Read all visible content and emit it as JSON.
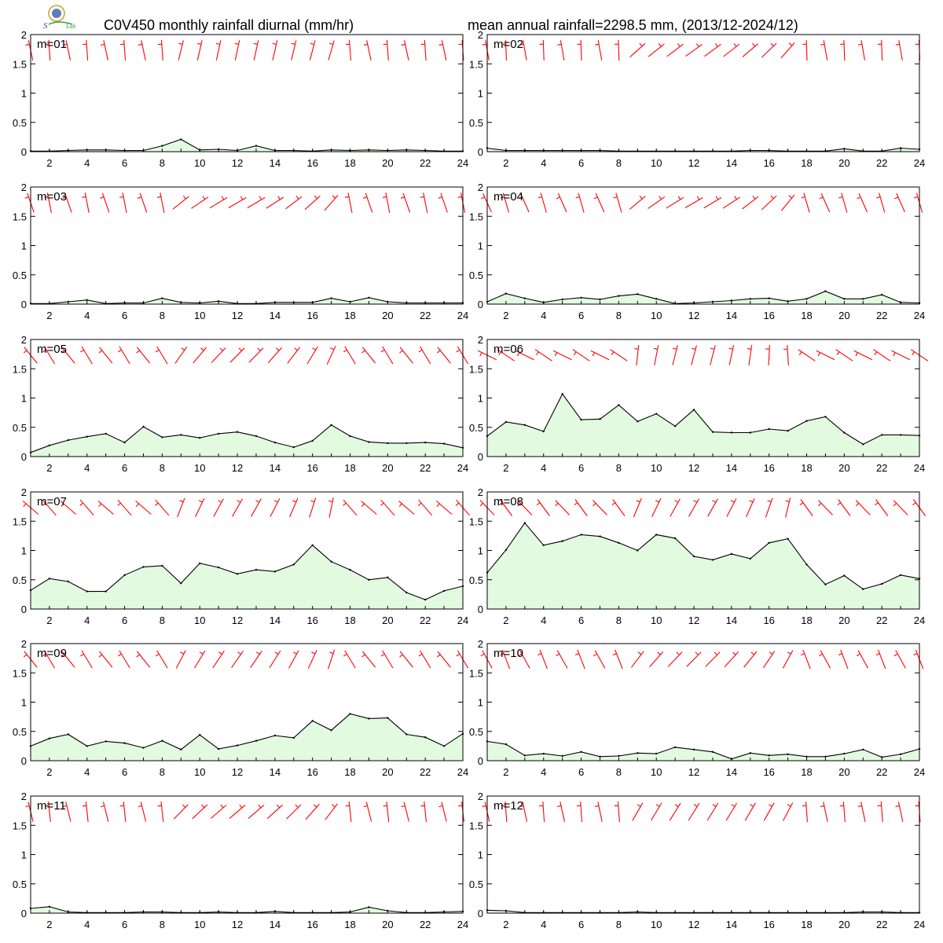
{
  "title_left": "C0V450 monthly rainfall diurnal (mm/hr)",
  "title_right": "mean annual rainfall=2298.5 mm, (2013/12-2024/12)",
  "colors": {
    "line": "#000000",
    "fill": "#e2fbe0",
    "wind": "#ff0000",
    "frame": "#000000"
  },
  "logo_icon": "station-seal-logo-icon",
  "chart_data": [
    {
      "type": "area",
      "label": "m=01",
      "x": [
        1,
        2,
        3,
        4,
        5,
        6,
        7,
        8,
        9,
        10,
        11,
        12,
        13,
        14,
        15,
        16,
        17,
        18,
        19,
        20,
        21,
        22,
        23,
        24
      ],
      "y": [
        0.01,
        0.01,
        0.02,
        0.03,
        0.03,
        0.02,
        0.02,
        0.1,
        0.21,
        0.03,
        0.04,
        0.02,
        0.1,
        0.02,
        0.02,
        0.01,
        0.03,
        0.02,
        0.03,
        0.02,
        0.03,
        0.02,
        0.01,
        0.01
      ],
      "ylim": [
        0,
        2
      ],
      "xlim": [
        1,
        24
      ],
      "yticks": [
        0,
        0.5,
        1,
        1.5,
        2
      ],
      "xticks": [
        2,
        4,
        6,
        8,
        10,
        12,
        14,
        16,
        18,
        20,
        22,
        24
      ]
    },
    {
      "type": "area",
      "label": "m=02",
      "x": [
        1,
        2,
        3,
        4,
        5,
        6,
        7,
        8,
        9,
        10,
        11,
        12,
        13,
        14,
        15,
        16,
        17,
        18,
        19,
        20,
        21,
        22,
        23,
        24
      ],
      "y": [
        0.06,
        0.02,
        0.02,
        0.02,
        0.02,
        0.02,
        0.02,
        0.01,
        0.01,
        0.01,
        0.01,
        0.01,
        0.01,
        0.01,
        0.02,
        0.02,
        0.01,
        0.01,
        0.01,
        0.05,
        0.01,
        0.01,
        0.06,
        0.04
      ],
      "ylim": [
        0,
        2
      ],
      "xlim": [
        1,
        24
      ],
      "yticks": [
        0,
        0.5,
        1,
        1.5,
        2
      ],
      "xticks": [
        2,
        4,
        6,
        8,
        10,
        12,
        14,
        16,
        18,
        20,
        22,
        24
      ]
    },
    {
      "type": "area",
      "label": "m=03",
      "x": [
        1,
        2,
        3,
        4,
        5,
        6,
        7,
        8,
        9,
        10,
        11,
        12,
        13,
        14,
        15,
        16,
        17,
        18,
        19,
        20,
        21,
        22,
        23,
        24
      ],
      "y": [
        0.01,
        0.01,
        0.04,
        0.07,
        0.01,
        0.02,
        0.02,
        0.1,
        0.03,
        0.02,
        0.05,
        0.01,
        0.01,
        0.03,
        0.03,
        0.03,
        0.1,
        0.04,
        0.11,
        0.04,
        0.02,
        0.02,
        0.02,
        0.02
      ],
      "ylim": [
        0,
        2
      ],
      "xlim": [
        1,
        24
      ],
      "yticks": [
        0,
        0.5,
        1,
        1.5,
        2
      ],
      "xticks": [
        2,
        4,
        6,
        8,
        10,
        12,
        14,
        16,
        18,
        20,
        22,
        24
      ]
    },
    {
      "type": "area",
      "label": "m=04",
      "x": [
        1,
        2,
        3,
        4,
        5,
        6,
        7,
        8,
        9,
        10,
        11,
        12,
        13,
        14,
        15,
        16,
        17,
        18,
        19,
        20,
        21,
        22,
        23,
        24
      ],
      "y": [
        0.04,
        0.18,
        0.1,
        0.03,
        0.08,
        0.11,
        0.08,
        0.14,
        0.17,
        0.09,
        0.01,
        0.02,
        0.04,
        0.06,
        0.09,
        0.1,
        0.05,
        0.09,
        0.22,
        0.09,
        0.09,
        0.16,
        0.03,
        0.02
      ],
      "ylim": [
        0,
        2
      ],
      "xlim": [
        1,
        24
      ],
      "yticks": [
        0,
        0.5,
        1,
        1.5,
        2
      ],
      "xticks": [
        2,
        4,
        6,
        8,
        10,
        12,
        14,
        16,
        18,
        20,
        22,
        24
      ]
    },
    {
      "type": "area",
      "label": "m=05",
      "x": [
        1,
        2,
        3,
        4,
        5,
        6,
        7,
        8,
        9,
        10,
        11,
        12,
        13,
        14,
        15,
        16,
        17,
        18,
        19,
        20,
        21,
        22,
        23,
        24
      ],
      "y": [
        0.07,
        0.19,
        0.28,
        0.34,
        0.39,
        0.24,
        0.51,
        0.33,
        0.37,
        0.32,
        0.39,
        0.42,
        0.35,
        0.24,
        0.16,
        0.27,
        0.54,
        0.35,
        0.25,
        0.23,
        0.23,
        0.24,
        0.22,
        0.15
      ],
      "ylim": [
        0,
        2
      ],
      "xlim": [
        1,
        24
      ],
      "yticks": [
        0,
        0.5,
        1,
        1.5,
        2
      ],
      "xticks": [
        2,
        4,
        6,
        8,
        10,
        12,
        14,
        16,
        18,
        20,
        22,
        24
      ]
    },
    {
      "type": "area",
      "label": "m=06",
      "x": [
        1,
        2,
        3,
        4,
        5,
        6,
        7,
        8,
        9,
        10,
        11,
        12,
        13,
        14,
        15,
        16,
        17,
        18,
        19,
        20,
        21,
        22,
        23,
        24
      ],
      "y": [
        0.35,
        0.59,
        0.54,
        0.43,
        1.07,
        0.63,
        0.64,
        0.88,
        0.6,
        0.73,
        0.52,
        0.8,
        0.42,
        0.41,
        0.41,
        0.47,
        0.44,
        0.61,
        0.68,
        0.41,
        0.21,
        0.37,
        0.37,
        0.36
      ],
      "ylim": [
        0,
        2
      ],
      "xlim": [
        1,
        24
      ],
      "yticks": [
        0,
        0.5,
        1,
        1.5,
        2
      ],
      "xticks": [
        2,
        4,
        6,
        8,
        10,
        12,
        14,
        16,
        18,
        20,
        22,
        24
      ]
    },
    {
      "type": "area",
      "label": "m=07",
      "x": [
        1,
        2,
        3,
        4,
        5,
        6,
        7,
        8,
        9,
        10,
        11,
        12,
        13,
        14,
        15,
        16,
        17,
        18,
        19,
        20,
        21,
        22,
        23,
        24
      ],
      "y": [
        0.32,
        0.52,
        0.47,
        0.3,
        0.3,
        0.58,
        0.72,
        0.74,
        0.44,
        0.78,
        0.71,
        0.6,
        0.67,
        0.64,
        0.76,
        1.09,
        0.81,
        0.67,
        0.5,
        0.54,
        0.28,
        0.16,
        0.31,
        0.39
      ],
      "ylim": [
        0,
        2
      ],
      "xlim": [
        1,
        24
      ],
      "yticks": [
        0,
        0.5,
        1,
        1.5,
        2
      ],
      "xticks": [
        2,
        4,
        6,
        8,
        10,
        12,
        14,
        16,
        18,
        20,
        22,
        24
      ]
    },
    {
      "type": "area",
      "label": "m=08",
      "x": [
        1,
        2,
        3,
        4,
        5,
        6,
        7,
        8,
        9,
        10,
        11,
        12,
        13,
        14,
        15,
        16,
        17,
        18,
        19,
        20,
        21,
        22,
        23,
        24
      ],
      "y": [
        0.62,
        1.01,
        1.47,
        1.09,
        1.16,
        1.27,
        1.24,
        1.13,
        1.0,
        1.27,
        1.21,
        0.9,
        0.84,
        0.94,
        0.86,
        1.13,
        1.2,
        0.76,
        0.42,
        0.57,
        0.34,
        0.43,
        0.58,
        0.52
      ],
      "ylim": [
        0,
        2
      ],
      "xlim": [
        1,
        24
      ],
      "yticks": [
        0,
        0.5,
        1,
        1.5,
        2
      ],
      "xticks": [
        2,
        4,
        6,
        8,
        10,
        12,
        14,
        16,
        18,
        20,
        22,
        24
      ]
    },
    {
      "type": "area",
      "label": "m=09",
      "x": [
        1,
        2,
        3,
        4,
        5,
        6,
        7,
        8,
        9,
        10,
        11,
        12,
        13,
        14,
        15,
        16,
        17,
        18,
        19,
        20,
        21,
        22,
        23,
        24
      ],
      "y": [
        0.25,
        0.38,
        0.45,
        0.25,
        0.33,
        0.3,
        0.22,
        0.34,
        0.19,
        0.44,
        0.2,
        0.26,
        0.34,
        0.43,
        0.39,
        0.68,
        0.52,
        0.8,
        0.72,
        0.73,
        0.45,
        0.4,
        0.25,
        0.46
      ],
      "ylim": [
        0,
        2
      ],
      "xlim": [
        1,
        24
      ],
      "yticks": [
        0,
        0.5,
        1,
        1.5,
        2
      ],
      "xticks": [
        2,
        4,
        6,
        8,
        10,
        12,
        14,
        16,
        18,
        20,
        22,
        24
      ]
    },
    {
      "type": "area",
      "label": "m=10",
      "x": [
        1,
        2,
        3,
        4,
        5,
        6,
        7,
        8,
        9,
        10,
        11,
        12,
        13,
        14,
        15,
        16,
        17,
        18,
        19,
        20,
        21,
        22,
        23,
        24
      ],
      "y": [
        0.33,
        0.28,
        0.09,
        0.12,
        0.08,
        0.15,
        0.07,
        0.08,
        0.13,
        0.12,
        0.23,
        0.19,
        0.15,
        0.03,
        0.13,
        0.09,
        0.11,
        0.07,
        0.07,
        0.12,
        0.19,
        0.06,
        0.11,
        0.2
      ],
      "ylim": [
        0,
        2
      ],
      "xlim": [
        1,
        24
      ],
      "yticks": [
        0,
        0.5,
        1,
        1.5,
        2
      ],
      "xticks": [
        2,
        4,
        6,
        8,
        10,
        12,
        14,
        16,
        18,
        20,
        22,
        24
      ]
    },
    {
      "type": "area",
      "label": "m=11",
      "x": [
        1,
        2,
        3,
        4,
        5,
        6,
        7,
        8,
        9,
        10,
        11,
        12,
        13,
        14,
        15,
        16,
        17,
        18,
        19,
        20,
        21,
        22,
        23,
        24
      ],
      "y": [
        0.08,
        0.11,
        0.02,
        0.01,
        0.01,
        0.01,
        0.02,
        0.02,
        0.01,
        0.01,
        0.02,
        0.01,
        0.01,
        0.03,
        0.01,
        0.01,
        0.01,
        0.02,
        0.1,
        0.04,
        0.01,
        0.01,
        0.02,
        0.03
      ],
      "ylim": [
        0,
        2
      ],
      "xlim": [
        1,
        24
      ],
      "yticks": [
        0,
        0.5,
        1,
        1.5,
        2
      ],
      "xticks": [
        2,
        4,
        6,
        8,
        10,
        12,
        14,
        16,
        18,
        20,
        22,
        24
      ]
    },
    {
      "type": "area",
      "label": "m=12",
      "x": [
        1,
        2,
        3,
        4,
        5,
        6,
        7,
        8,
        9,
        10,
        11,
        12,
        13,
        14,
        15,
        16,
        17,
        18,
        19,
        20,
        21,
        22,
        23,
        24
      ],
      "y": [
        0.05,
        0.04,
        0.01,
        0.01,
        0.01,
        0.01,
        0.01,
        0.01,
        0.02,
        0.01,
        0.01,
        0.01,
        0.01,
        0.01,
        0.01,
        0.01,
        0.01,
        0.01,
        0.01,
        0.01,
        0.02,
        0.02,
        0.01,
        0.01
      ],
      "ylim": [
        0,
        2
      ],
      "xlim": [
        1,
        24
      ],
      "yticks": [
        0,
        0.5,
        1,
        1.5,
        2
      ],
      "xticks": [
        2,
        4,
        6,
        8,
        10,
        12,
        14,
        16,
        18,
        20,
        22,
        24
      ]
    }
  ]
}
